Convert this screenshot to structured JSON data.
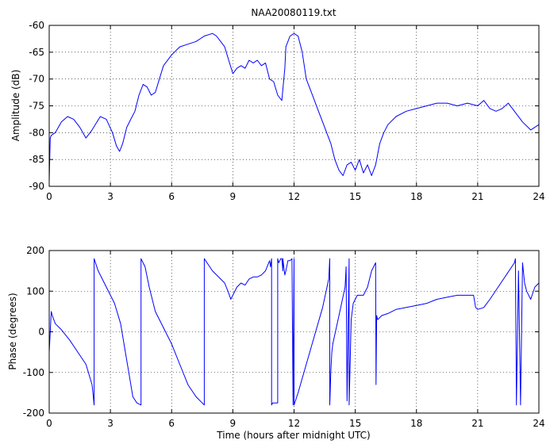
{
  "chart_data": [
    {
      "type": "line",
      "title": "NAA20080119.txt",
      "xlabel": "",
      "ylabel": "Amplitude (dB)",
      "xlim": [
        0,
        24
      ],
      "ylim": [
        -90,
        -60
      ],
      "grid": true,
      "x_ticks": [
        0,
        3,
        6,
        9,
        12,
        15,
        18,
        21,
        24
      ],
      "x_tick_labels": [
        "0",
        "3",
        "6",
        "9",
        "12",
        "15",
        "18",
        "21",
        "24"
      ],
      "y_ticks": [
        -90,
        -85,
        -80,
        -75,
        -70,
        -65,
        -60
      ],
      "y_tick_labels": [
        "-90",
        "-85",
        "-80",
        "-75",
        "-70",
        "-65",
        "-60"
      ],
      "color": "#0000ff",
      "series": [
        {
          "x": [
            0,
            0.03,
            0.05,
            0.1,
            0.3,
            0.6,
            0.9,
            1.2,
            1.5,
            1.8,
            2.1,
            2.5,
            2.8,
            3.1,
            3.3,
            3.45,
            3.6,
            3.8,
            4.0,
            4.2,
            4.4,
            4.6,
            4.8,
            5.0,
            5.2,
            5.4,
            5.6,
            6.0,
            6.4,
            6.8,
            7.2,
            7.6,
            8.0,
            8.2,
            8.4,
            8.6,
            8.8,
            9.0,
            9.2,
            9.4,
            9.6,
            9.8,
            10.0,
            10.2,
            10.4,
            10.6,
            10.8,
            11.0,
            11.2,
            11.4,
            11.55,
            11.6,
            11.7,
            11.8,
            12.0,
            12.2,
            12.4,
            12.6,
            12.8,
            13.0,
            13.2,
            13.4,
            13.6,
            13.8,
            14.0,
            14.2,
            14.4,
            14.6,
            14.8,
            15.0,
            15.2,
            15.4,
            15.6,
            15.8,
            16.0,
            16.2,
            16.4,
            16.6,
            17.0,
            17.5,
            18.0,
            18.5,
            19.0,
            19.5,
            20.0,
            20.5,
            21.0,
            21.3,
            21.6,
            21.9,
            22.2,
            22.5,
            22.8,
            23.2,
            23.6,
            24.0
          ],
          "values": [
            -89,
            -84,
            -81,
            -80.5,
            -80,
            -78,
            -77,
            -77.5,
            -79,
            -81,
            -79.5,
            -77,
            -77.5,
            -80,
            -82.5,
            -83.5,
            -82,
            -79,
            -77.5,
            -76,
            -73,
            -71,
            -71.5,
            -73,
            -72.5,
            -70,
            -67.5,
            -65.5,
            -64,
            -63.5,
            -63,
            -62,
            -61.5,
            -62,
            -63,
            -64,
            -66.5,
            -69,
            -68,
            -67.5,
            -68,
            -66.5,
            -67,
            -66.5,
            -67.5,
            -67,
            -70,
            -70.5,
            -73,
            -74,
            -68,
            -64,
            -63,
            -62,
            -61.5,
            -62,
            -65,
            -70,
            -72,
            -74,
            -76,
            -78,
            -80,
            -82,
            -85,
            -87,
            -88,
            -86,
            -85.5,
            -87,
            -85,
            -87.5,
            -86,
            -88,
            -86,
            -82,
            -80,
            -78.5,
            -77,
            -76,
            -75.5,
            -75,
            -74.5,
            -74.5,
            -75,
            -74.5,
            -75,
            -74,
            -75.5,
            -76,
            -75.5,
            -74.5,
            -76,
            -78,
            -79.5,
            -78.5
          ]
        }
      ]
    },
    {
      "type": "line",
      "title": "",
      "xlabel": "Time (hours after midnight UTC)",
      "ylabel": "Phase (degrees)",
      "xlim": [
        0,
        24
      ],
      "ylim": [
        -200,
        200
      ],
      "grid": true,
      "x_ticks": [
        0,
        3,
        6,
        9,
        12,
        15,
        18,
        21,
        24
      ],
      "x_tick_labels": [
        "0",
        "3",
        "6",
        "9",
        "12",
        "15",
        "18",
        "21",
        "24"
      ],
      "y_ticks": [
        -200,
        -100,
        0,
        100,
        200
      ],
      "y_tick_labels": [
        "-200",
        "-100",
        "0",
        "100",
        "200"
      ],
      "color": "#0000ff",
      "series": [
        {
          "x": [
            0,
            0.05,
            0.1,
            0.15,
            0.3,
            0.6,
            1.0,
            1.4,
            1.8,
            2.1,
            2.2,
            2.2,
            2.4,
            2.8,
            3.2,
            3.5,
            3.7,
            3.9,
            4.1,
            4.3,
            4.5,
            4.5,
            4.7,
            4.9,
            5.2,
            5.6,
            6.0,
            6.4,
            6.8,
            7.2,
            7.6,
            7.6,
            7.8,
            8.0,
            8.4,
            8.6,
            8.8,
            8.9,
            9.0,
            9.2,
            9.4,
            9.6,
            9.8,
            10.0,
            10.2,
            10.4,
            10.6,
            10.8,
            10.85,
            10.9,
            10.9,
            10.95,
            11.0,
            11.1,
            11.2,
            11.2,
            11.25,
            11.3,
            11.35,
            11.4,
            11.45,
            11.45,
            11.5,
            11.55,
            11.6,
            11.7,
            11.8,
            11.9,
            11.95,
            12.0,
            12.0,
            12.2,
            12.6,
            13.0,
            13.4,
            13.7,
            13.75,
            13.75,
            13.8,
            13.85,
            13.9,
            14.2,
            14.5,
            14.55,
            14.6,
            14.65,
            14.7,
            14.7,
            14.8,
            14.9,
            15.0,
            15.1,
            15.2,
            15.4,
            15.6,
            15.8,
            16.0,
            16.02,
            16.05,
            16.1,
            16.3,
            16.6,
            17.0,
            17.5,
            18.0,
            18.5,
            19.0,
            19.5,
            20.0,
            20.5,
            20.8,
            20.9,
            21.0,
            21.3,
            21.6,
            22.0,
            22.4,
            22.8,
            22.85,
            22.9,
            23.0,
            23.1,
            23.2,
            23.3,
            23.4,
            23.6,
            23.8,
            24.0
          ],
          "values": [
            -50,
            0,
            50,
            40,
            20,
            5,
            -20,
            -50,
            -80,
            -130,
            -180,
            180,
            150,
            110,
            70,
            20,
            -40,
            -100,
            -160,
            -175,
            -180,
            180,
            160,
            110,
            50,
            10,
            -30,
            -80,
            -130,
            -160,
            -180,
            180,
            165,
            150,
            130,
            120,
            95,
            80,
            90,
            110,
            120,
            115,
            130,
            135,
            135,
            140,
            150,
            175,
            160,
            180,
            -180,
            -175,
            -175,
            -175,
            -175,
            180,
            170,
            175,
            180,
            180,
            150,
            180,
            160,
            140,
            150,
            175,
            175,
            180,
            -180,
            180,
            -180,
            -150,
            -80,
            -10,
            60,
            130,
            180,
            -180,
            -100,
            -50,
            -30,
            40,
            110,
            160,
            -170,
            0,
            180,
            -180,
            30,
            70,
            80,
            90,
            90,
            90,
            110,
            150,
            170,
            -130,
            40,
            30,
            40,
            45,
            55,
            60,
            65,
            70,
            80,
            85,
            90,
            90,
            90,
            60,
            55,
            60,
            80,
            110,
            140,
            170,
            180,
            -180,
            150,
            -180,
            170,
            120,
            100,
            80,
            110,
            120
          ]
        }
      ]
    }
  ]
}
